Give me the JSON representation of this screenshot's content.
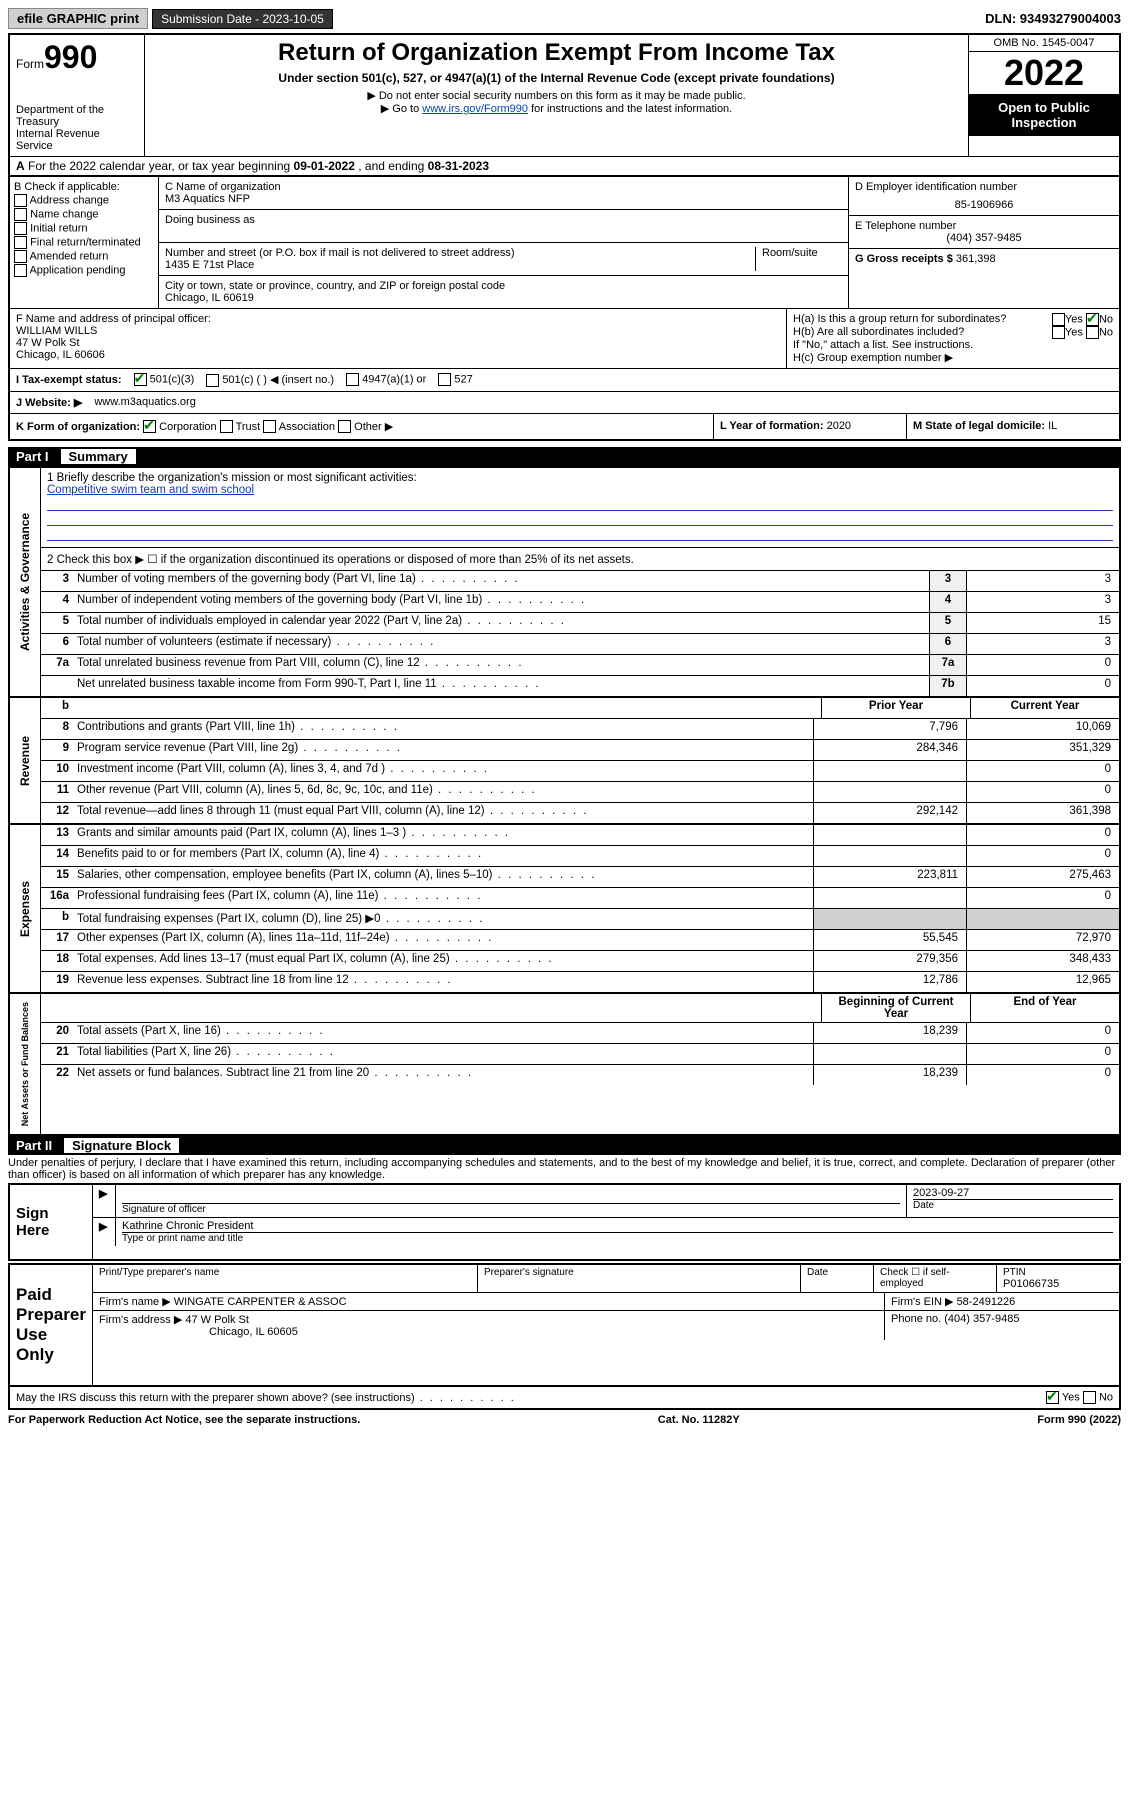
{
  "topbar": {
    "efile": "efile GRAPHIC print",
    "submission_label": "Submission Date - 2023-10-05",
    "dln": "DLN: 93493279004003"
  },
  "header": {
    "form_label": "Form",
    "form_num": "990",
    "title": "Return of Organization Exempt From Income Tax",
    "sub1": "Under section 501(c), 527, or 4947(a)(1) of the Internal Revenue Code (except private foundations)",
    "sub2": "▶ Do not enter social security numbers on this form as it may be made public.",
    "sub3_pre": "▶ Go to ",
    "sub3_link": "www.irs.gov/Form990",
    "sub3_post": " for instructions and the latest information.",
    "dept": "Department of the Treasury",
    "irs": "Internal Revenue Service",
    "omb": "OMB No. 1545-0047",
    "year": "2022",
    "open": "Open to Public Inspection"
  },
  "row_a": {
    "label_a": "A",
    "text1": " For the 2022 calendar year, or tax year beginning ",
    "begin": "09-01-2022",
    "text2": " , and ending ",
    "end": "08-31-2023"
  },
  "col_b": {
    "label": "B Check if applicable:",
    "items": [
      "Address change",
      "Name change",
      "Initial return",
      "Final return/terminated",
      "Amended return",
      "Application pending"
    ]
  },
  "col_c": {
    "name_label": "C Name of organization",
    "name": "M3 Aquatics NFP",
    "dba_label": "Doing business as",
    "street_label": "Number and street (or P.O. box if mail is not delivered to street address)",
    "room_label": "Room/suite",
    "street": "1435 E 71st Place",
    "city_label": "City or town, state or province, country, and ZIP or foreign postal code",
    "city": "Chicago, IL  60619"
  },
  "col_d": {
    "ein_label": "D Employer identification number",
    "ein": "85-1906966",
    "phone_label": "E Telephone number",
    "phone": "(404) 357-9485",
    "gross_label": "G Gross receipts $",
    "gross": "361,398"
  },
  "f": {
    "label": "F Name and address of principal officer:",
    "name": "WILLIAM WILLS",
    "addr1": "47 W Polk St",
    "addr2": "Chicago, IL  60606"
  },
  "h": {
    "ha": "H(a)  Is this a group return for subordinates?",
    "hb": "H(b)  Are all subordinates included?",
    "hb_note": "If \"No,\" attach a list. See instructions.",
    "hc": "H(c)  Group exemption number ▶",
    "yes": "Yes",
    "no": "No"
  },
  "i": {
    "label": "I   Tax-exempt status:",
    "o1": "501(c)(3)",
    "o2": "501(c) (   ) ◀ (insert no.)",
    "o3": "4947(a)(1) or",
    "o4": "527"
  },
  "j": {
    "label": "J   Website: ▶",
    "value": "www.m3aquatics.org"
  },
  "k": "K Form of organization:",
  "k_opts": [
    "Corporation",
    "Trust",
    "Association",
    "Other ▶"
  ],
  "l_label": "L Year of formation:",
  "l_val": "2020",
  "m_label": "M State of legal domicile:",
  "m_val": "IL",
  "part1": {
    "label": "Part I",
    "title": "Summary"
  },
  "mission_label": "1   Briefly describe the organization's mission or most significant activities:",
  "mission": "Competitive swim team and swim school",
  "line2": "2   Check this box ▶ ☐  if the organization discontinued its operations or disposed of more than 25% of its net assets.",
  "tabs": {
    "gov": "Activities & Governance",
    "rev": "Revenue",
    "exp": "Expenses",
    "net": "Net Assets or Fund Balances"
  },
  "rows_single": [
    {
      "num": "3",
      "desc": "Number of voting members of the governing body (Part VI, line 1a)",
      "box": "3",
      "val": "3"
    },
    {
      "num": "4",
      "desc": "Number of independent voting members of the governing body (Part VI, line 1b)",
      "box": "4",
      "val": "3"
    },
    {
      "num": "5",
      "desc": "Total number of individuals employed in calendar year 2022 (Part V, line 2a)",
      "box": "5",
      "val": "15"
    },
    {
      "num": "6",
      "desc": "Total number of volunteers (estimate if necessary)",
      "box": "6",
      "val": "3"
    },
    {
      "num": "7a",
      "desc": "Total unrelated business revenue from Part VIII, column (C), line 12",
      "box": "7a",
      "val": "0"
    },
    {
      "num": "",
      "desc": "Net unrelated business taxable income from Form 990-T, Part I, line 11",
      "box": "7b",
      "val": "0"
    }
  ],
  "col_hdrs": {
    "prior": "Prior Year",
    "current": "Current Year",
    "beg": "Beginning of Current Year",
    "end": "End of Year"
  },
  "rows_double": {
    "revenue": [
      {
        "num": "8",
        "desc": "Contributions and grants (Part VIII, line 1h)",
        "prior": "7,796",
        "curr": "10,069"
      },
      {
        "num": "9",
        "desc": "Program service revenue (Part VIII, line 2g)",
        "prior": "284,346",
        "curr": "351,329"
      },
      {
        "num": "10",
        "desc": "Investment income (Part VIII, column (A), lines 3, 4, and 7d )",
        "prior": "",
        "curr": "0"
      },
      {
        "num": "11",
        "desc": "Other revenue (Part VIII, column (A), lines 5, 6d, 8c, 9c, 10c, and 11e)",
        "prior": "",
        "curr": "0"
      },
      {
        "num": "12",
        "desc": "Total revenue—add lines 8 through 11 (must equal Part VIII, column (A), line 12)",
        "prior": "292,142",
        "curr": "361,398"
      }
    ],
    "expenses": [
      {
        "num": "13",
        "desc": "Grants and similar amounts paid (Part IX, column (A), lines 1–3 )",
        "prior": "",
        "curr": "0"
      },
      {
        "num": "14",
        "desc": "Benefits paid to or for members (Part IX, column (A), line 4)",
        "prior": "",
        "curr": "0"
      },
      {
        "num": "15",
        "desc": "Salaries, other compensation, employee benefits (Part IX, column (A), lines 5–10)",
        "prior": "223,811",
        "curr": "275,463"
      },
      {
        "num": "16a",
        "desc": "Professional fundraising fees (Part IX, column (A), line 11e)",
        "prior": "",
        "curr": "0"
      },
      {
        "num": "b",
        "desc": "Total fundraising expenses (Part IX, column (D), line 25) ▶0",
        "prior": "SHADED",
        "curr": "SHADED"
      },
      {
        "num": "17",
        "desc": "Other expenses (Part IX, column (A), lines 11a–11d, 11f–24e)",
        "prior": "55,545",
        "curr": "72,970"
      },
      {
        "num": "18",
        "desc": "Total expenses. Add lines 13–17 (must equal Part IX, column (A), line 25)",
        "prior": "279,356",
        "curr": "348,433"
      },
      {
        "num": "19",
        "desc": "Revenue less expenses. Subtract line 18 from line 12",
        "prior": "12,786",
        "curr": "12,965"
      }
    ],
    "net": [
      {
        "num": "20",
        "desc": "Total assets (Part X, line 16)",
        "prior": "18,239",
        "curr": "0"
      },
      {
        "num": "21",
        "desc": "Total liabilities (Part X, line 26)",
        "prior": "",
        "curr": "0"
      },
      {
        "num": "22",
        "desc": "Net assets or fund balances. Subtract line 21 from line 20",
        "prior": "18,239",
        "curr": "0"
      }
    ]
  },
  "part2": {
    "label": "Part II",
    "title": "Signature Block"
  },
  "penalties": "Under penalties of perjury, I declare that I have examined this return, including accompanying schedules and statements, and to the best of my knowledge and belief, it is true, correct, and complete. Declaration of preparer (other than officer) is based on all information of which preparer has any knowledge.",
  "sign": {
    "here": "Sign Here",
    "sig_label": "Signature of officer",
    "date_label": "Date",
    "date": "2023-09-27",
    "name": "Kathrine Chronic  President",
    "name_label": "Type or print name and title"
  },
  "paid": {
    "label": "Paid Preparer Use Only",
    "h1": "Print/Type preparer's name",
    "h2": "Preparer's signature",
    "h3": "Date",
    "h4_pre": "Check ☐ if self-employed",
    "h5": "PTIN",
    "ptin": "P01066735",
    "firm_label": "Firm's name    ▶",
    "firm": "WINGATE CARPENTER & ASSOC",
    "ein_label": "Firm's EIN ▶",
    "ein": "58-2491226",
    "addr_label": "Firm's address ▶",
    "addr1": "47 W Polk St",
    "addr2": "Chicago, IL  60605",
    "phone_label": "Phone no.",
    "phone": "(404) 357-9485"
  },
  "discuss": "May the IRS discuss this return with the preparer shown above? (see instructions)",
  "footer": {
    "left": "For Paperwork Reduction Act Notice, see the separate instructions.",
    "mid": "Cat. No. 11282Y",
    "right": "Form 990 (2022)"
  }
}
